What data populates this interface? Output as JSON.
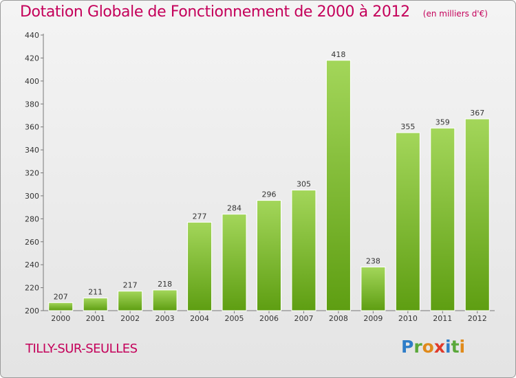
{
  "header": {
    "title": "Dotation Globale de Fonctionnement de 2000 à 2012",
    "unit": "(en milliers d'€)"
  },
  "footer": {
    "city": "TILLY-SUR-SEULLES",
    "logo": "Proxiti"
  },
  "colors": {
    "title": "#c4005a",
    "bar_top": "#a3d65a",
    "bar_bottom": "#5e9e12"
  },
  "chart_data": {
    "type": "bar",
    "title": "Dotation Globale de Fonctionnement de 2000 à 2012",
    "subtitle": "(en milliers d'€)",
    "xlabel": "",
    "ylabel": "",
    "categories": [
      "2000",
      "2001",
      "2002",
      "2003",
      "2004",
      "2005",
      "2006",
      "2007",
      "2008",
      "2009",
      "2010",
      "2011",
      "2012"
    ],
    "values": [
      207,
      211,
      217,
      218,
      277,
      284,
      296,
      305,
      418,
      238,
      355,
      359,
      367
    ],
    "ylim": [
      200,
      440
    ],
    "yticks": [
      200,
      220,
      240,
      260,
      280,
      300,
      320,
      340,
      360,
      380,
      400,
      420,
      440
    ],
    "grid": false,
    "data_labels": true
  }
}
